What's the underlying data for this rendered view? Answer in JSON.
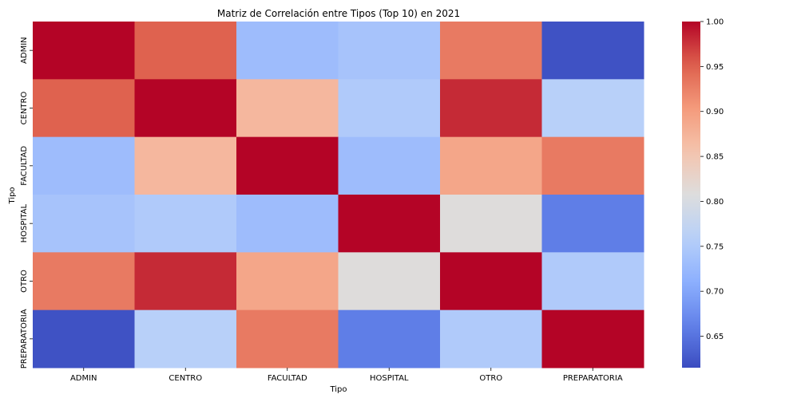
{
  "chart_data": {
    "type": "heatmap",
    "title": "Matriz de Correlación entre Tipos (Top 10) en 2021",
    "xlabel": "Tipo",
    "ylabel": "Tipo",
    "x_categories": [
      "ADMIN",
      "CENTRO",
      "FACULTAD",
      "HOSPITAL",
      "OTRO",
      "PREPARATORIA"
    ],
    "y_categories": [
      "ADMIN",
      "CENTRO",
      "FACULTAD",
      "HOSPITAL",
      "OTRO",
      "PREPARATORIA"
    ],
    "values": [
      [
        1.0,
        0.95,
        0.73,
        0.74,
        0.93,
        0.62
      ],
      [
        0.95,
        1.0,
        0.87,
        0.75,
        0.98,
        0.76
      ],
      [
        0.73,
        0.87,
        1.0,
        0.73,
        0.89,
        0.93
      ],
      [
        0.74,
        0.75,
        0.73,
        1.0,
        0.81,
        0.66
      ],
      [
        0.93,
        0.98,
        0.89,
        0.81,
        1.0,
        0.75
      ],
      [
        0.62,
        0.76,
        0.93,
        0.66,
        0.75,
        1.0
      ]
    ],
    "colormap": "coolwarm",
    "vmin": 0.615,
    "vmax": 1.0,
    "colorbar_ticks": [
      "1.00",
      "0.95",
      "0.90",
      "0.85",
      "0.80",
      "0.75",
      "0.70",
      "0.65"
    ],
    "grid": false,
    "colorbar": "right"
  }
}
